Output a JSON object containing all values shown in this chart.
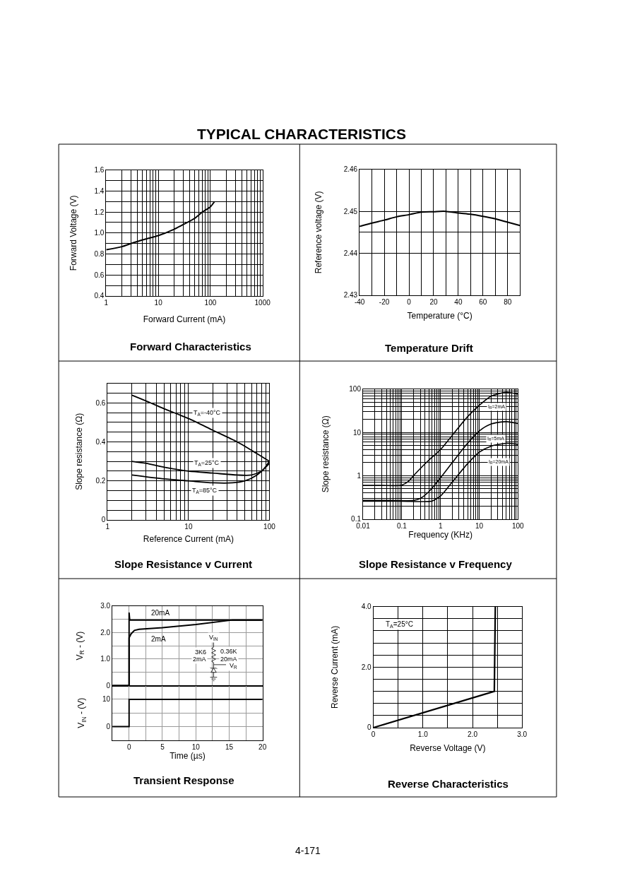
{
  "chart_data": [
    {
      "type": "other",
      "title": "TYPICAL CHARACTERISTICS"
    },
    {
      "type": "line",
      "title": "Forward Characteristics",
      "xlabel": "Forward Current (mA)",
      "ylabel": "Forward Voltage (V)",
      "log": "x",
      "grid": true,
      "xlim": [
        1,
        1000
      ],
      "ylim": [
        0.4,
        1.6
      ],
      "xticks": [
        1,
        {
          "value": 2,
          "label": null
        },
        {
          "value": 3,
          "label": null
        },
        {
          "value": 4,
          "label": null
        },
        {
          "value": 5,
          "label": null
        },
        {
          "value": 6,
          "label": null
        },
        {
          "value": 7,
          "label": null
        },
        {
          "value": 8,
          "label": null
        },
        {
          "value": 9,
          "label": null
        },
        10,
        {
          "value": 20,
          "label": null
        },
        {
          "value": 30,
          "label": null
        },
        {
          "value": 40,
          "label": null
        },
        {
          "value": 50,
          "label": null
        },
        {
          "value": 60,
          "label": null
        },
        {
          "value": 70,
          "label": null
        },
        {
          "value": 80,
          "label": null
        },
        {
          "value": 90,
          "label": null
        },
        100,
        {
          "value": 200,
          "label": null
        },
        {
          "value": 300,
          "label": null
        },
        {
          "value": 400,
          "label": null
        },
        {
          "value": 500,
          "label": null
        },
        {
          "value": 600,
          "label": null
        },
        {
          "value": 700,
          "label": null
        },
        {
          "value": 800,
          "label": null
        },
        {
          "value": 900,
          "label": null
        },
        1000
      ],
      "yticks": [
        0.4,
        {
          "value": 0.5,
          "label": null
        },
        0.6,
        {
          "value": 0.7,
          "label": null
        },
        0.8,
        {
          "value": 0.9,
          "label": null
        },
        {
          "value": 1.0,
          "label": "1.0"
        },
        {
          "value": 1.1,
          "label": null
        },
        1.2,
        {
          "value": 1.3,
          "label": null
        },
        1.4,
        {
          "value": 1.5,
          "label": null
        },
        1.6
      ],
      "series": [
        {
          "color": "#000000",
          "x": [
            1,
            2,
            3,
            5,
            10,
            20,
            30,
            50,
            70,
            100,
            120
          ],
          "values": [
            0.84,
            0.87,
            0.9,
            0.935,
            0.975,
            1.035,
            1.08,
            1.14,
            1.2,
            1.25,
            1.3
          ]
        }
      ]
    },
    {
      "type": "line",
      "title": "Temperature Drift",
      "xlabel": "Temperature (°C)",
      "ylabel": "Reference voltage (V)",
      "grid": true,
      "xlim": [
        -40,
        90
      ],
      "ylim": [
        2.43,
        2.46
      ],
      "xticks": [
        -40,
        {
          "value": -30,
          "label": null
        },
        -20,
        {
          "value": -10,
          "label": null
        },
        0,
        {
          "value": 10,
          "label": null
        },
        20,
        {
          "value": 30,
          "label": null
        },
        40,
        {
          "value": 50,
          "label": null
        },
        60,
        {
          "value": 70,
          "label": null
        },
        80,
        {
          "value": 90,
          "label": null
        }
      ],
      "yticks": [
        2.43,
        2.44,
        {
          "value": 2.445,
          "label": null
        },
        2.45,
        2.46
      ],
      "series": [
        {
          "color": "#000000",
          "x": [
            -40,
            -30,
            -20,
            -10,
            0,
            10,
            20,
            25,
            30,
            40,
            50,
            60,
            70,
            80,
            90
          ],
          "values": [
            2.4464,
            2.4472,
            2.4479,
            2.4487,
            2.4492,
            2.4498,
            2.4499,
            2.45,
            2.45,
            2.4496,
            2.4493,
            2.4488,
            2.4482,
            2.4474,
            2.4466
          ]
        }
      ]
    },
    {
      "type": "line",
      "title": "Slope Resistance v Current",
      "xlabel": "Reference Current (mA)",
      "ylabel": "Slope resistance (Ω)",
      "log": "x",
      "grid": true,
      "xlim": [
        1,
        100
      ],
      "ylim": [
        0,
        0.7
      ],
      "xticks": [
        1,
        {
          "value": 2,
          "label": null
        },
        {
          "value": 3,
          "label": null
        },
        {
          "value": 4,
          "label": null
        },
        {
          "value": 5,
          "label": null
        },
        {
          "value": 6,
          "label": null
        },
        {
          "value": 7,
          "label": null
        },
        {
          "value": 8,
          "label": null
        },
        {
          "value": 9,
          "label": null
        },
        10,
        {
          "value": 20,
          "label": null
        },
        {
          "value": 30,
          "label": null
        },
        {
          "value": 40,
          "label": null
        },
        {
          "value": 50,
          "label": null
        },
        {
          "value": 60,
          "label": null
        },
        {
          "value": 70,
          "label": null
        },
        {
          "value": 80,
          "label": null
        },
        {
          "value": 90,
          "label": null
        },
        100
      ],
      "yticks": [
        0,
        {
          "value": 0.05,
          "label": null
        },
        {
          "value": 0.1,
          "label": null
        },
        {
          "value": 0.15,
          "label": null
        },
        0.2,
        {
          "value": 0.25,
          "label": null
        },
        {
          "value": 0.3,
          "label": null
        },
        {
          "value": 0.35,
          "label": null
        },
        0.4,
        {
          "value": 0.45,
          "label": null
        },
        {
          "value": 0.5,
          "label": null
        },
        {
          "value": 0.55,
          "label": null
        },
        0.6,
        {
          "value": 0.65,
          "label": null
        },
        {
          "value": 0.7,
          "label": null
        }
      ],
      "series": [
        {
          "color": "#000000",
          "x": [
            2,
            3,
            5,
            10,
            20,
            40,
            70,
            100
          ],
          "values": [
            0.64,
            0.61,
            0.57,
            0.52,
            0.46,
            0.4,
            0.34,
            0.3
          ]
        },
        {
          "color": "#000000",
          "x": [
            2,
            3,
            5,
            10,
            20,
            40,
            60,
            80,
            90,
            100
          ],
          "values": [
            0.3,
            0.29,
            0.27,
            0.25,
            0.24,
            0.23,
            0.23,
            0.25,
            0.27,
            0.29
          ]
        },
        {
          "color": "#000000",
          "x": [
            2,
            5,
            10,
            20,
            35,
            50,
            70,
            85,
            100
          ],
          "values": [
            0.23,
            0.21,
            0.2,
            0.19,
            0.19,
            0.2,
            0.23,
            0.26,
            0.3
          ]
        }
      ],
      "annotations": [
        {
          "text": "T$_{A}$=-40°C",
          "x": 17,
          "y": 0.55
        },
        {
          "text": "T$_{A}$=25°C",
          "x": 17,
          "y": 0.29
        },
        {
          "text": "T$_{A}$=85°C",
          "x": 16,
          "y": 0.15
        }
      ]
    },
    {
      "type": "line",
      "title": "Slope Resistance v Frequency",
      "xlabel": "Frequency (KHz)",
      "ylabel": "Slope resistance (Ω)",
      "log": "xy",
      "grid": true,
      "xlim": [
        0.01,
        100
      ],
      "ylim": [
        0.1,
        100
      ],
      "xticks": [
        0.01,
        {
          "value": 0.02,
          "label": null
        },
        {
          "value": 0.03,
          "label": null
        },
        {
          "value": 0.04,
          "label": null
        },
        {
          "value": 0.05,
          "label": null
        },
        {
          "value": 0.06,
          "label": null
        },
        {
          "value": 0.07,
          "label": null
        },
        {
          "value": 0.08,
          "label": null
        },
        {
          "value": 0.09,
          "label": null
        },
        0.1,
        {
          "value": 0.2,
          "label": null
        },
        {
          "value": 0.3,
          "label": null
        },
        {
          "value": 0.4,
          "label": null
        },
        {
          "value": 0.5,
          "label": null
        },
        {
          "value": 0.6,
          "label": null
        },
        {
          "value": 0.7,
          "label": null
        },
        {
          "value": 0.8,
          "label": null
        },
        {
          "value": 0.9,
          "label": null
        },
        1,
        {
          "value": 2,
          "label": null
        },
        {
          "value": 3,
          "label": null
        },
        {
          "value": 4,
          "label": null
        },
        {
          "value": 5,
          "label": null
        },
        {
          "value": 6,
          "label": null
        },
        {
          "value": 7,
          "label": null
        },
        {
          "value": 8,
          "label": null
        },
        {
          "value": 9,
          "label": null
        },
        10,
        {
          "value": 20,
          "label": null
        },
        {
          "value": 30,
          "label": null
        },
        {
          "value": 40,
          "label": null
        },
        {
          "value": 50,
          "label": null
        },
        {
          "value": 60,
          "label": null
        },
        {
          "value": 70,
          "label": null
        },
        {
          "value": 80,
          "label": null
        },
        {
          "value": 90,
          "label": null
        },
        100
      ],
      "yticks": [
        0.1,
        {
          "value": 0.2,
          "label": null
        },
        {
          "value": 0.3,
          "label": null
        },
        {
          "value": 0.4,
          "label": null
        },
        {
          "value": 0.5,
          "label": null
        },
        {
          "value": 0.6,
          "label": null
        },
        {
          "value": 0.7,
          "label": null
        },
        {
          "value": 0.8,
          "label": null
        },
        {
          "value": 0.9,
          "label": null
        },
        1,
        {
          "value": 2,
          "label": null
        },
        {
          "value": 3,
          "label": null
        },
        {
          "value": 4,
          "label": null
        },
        {
          "value": 5,
          "label": null
        },
        {
          "value": 6,
          "label": null
        },
        {
          "value": 7,
          "label": null
        },
        {
          "value": 8,
          "label": null
        },
        {
          "value": 9,
          "label": null
        },
        10,
        {
          "value": 20,
          "label": null
        },
        {
          "value": 30,
          "label": null
        },
        {
          "value": 40,
          "label": null
        },
        {
          "value": 50,
          "label": null
        },
        {
          "value": 60,
          "label": null
        },
        {
          "value": 70,
          "label": null
        },
        {
          "value": 80,
          "label": null
        },
        {
          "value": 90,
          "label": null
        },
        100
      ],
      "series": [
        {
          "color": "#000000",
          "x": [
            0.01,
            0.03,
            0.1,
            0.15,
            0.2,
            0.5,
            1,
            2,
            5,
            10,
            20,
            50,
            100
          ],
          "values": [
            0.6,
            0.6,
            0.61,
            0.75,
            1.0,
            2.3,
            4.0,
            8.5,
            23,
            42,
            68,
            84,
            76
          ]
        },
        {
          "color": "#000000",
          "x": [
            0.01,
            0.05,
            0.2,
            0.3,
            0.5,
            1,
            2,
            5,
            10,
            20,
            50,
            100
          ],
          "values": [
            0.27,
            0.27,
            0.27,
            0.3,
            0.43,
            0.9,
            2.0,
            5.6,
            10.8,
            15.6,
            17.7,
            16
          ]
        },
        {
          "color": "#000000",
          "x": [
            0.01,
            0.1,
            0.6,
            0.8,
            1,
            2,
            5,
            10,
            20,
            50,
            100
          ],
          "values": [
            0.26,
            0.26,
            0.26,
            0.3,
            0.34,
            0.71,
            1.9,
            3.5,
            4.8,
            5.6,
            5.3
          ]
        }
      ],
      "annotations": [
        {
          "text": "I$_{R}$=2mA",
          "x": 28,
          "y": 38
        },
        {
          "text": "I$_{R}$=5mA",
          "x": 27,
          "y": 7.2
        },
        {
          "text": "I$_{R}$=20mA",
          "x": 32,
          "y": 2.1
        }
      ]
    },
    {
      "type": "line",
      "ylabel": "V$_{R}$ - (V)",
      "grid": true,
      "tick_labels": "y",
      "xlim": [
        -2.5,
        20
      ],
      "ylim": [
        0,
        3
      ],
      "xticks": [
        0,
        {
          "value": 2.5,
          "label": null
        },
        5,
        {
          "value": 7.5,
          "label": null
        },
        10,
        {
          "value": 12.5,
          "label": null
        },
        15,
        {
          "value": 17.5,
          "label": null
        },
        20
      ],
      "yticks": [
        0,
        {
          "value": 0.5,
          "label": null
        },
        {
          "value": 1,
          "label": "1.0"
        },
        {
          "value": 1.5,
          "label": null
        },
        {
          "value": 2,
          "label": "2.0"
        },
        {
          "value": 2.5,
          "label": null
        },
        {
          "value": 3,
          "label": "3.0"
        }
      ],
      "series": [
        {
          "name": "20mA",
          "color": "#000000",
          "x": [
            -2.5,
            0,
            0,
            0.1,
            20
          ],
          "values": [
            0,
            0,
            2.75,
            2.47,
            2.47
          ]
        },
        {
          "name": "2mA",
          "color": "#000000",
          "x": [
            -2.5,
            0,
            0,
            0.3,
            0.8,
            1.5,
            5,
            10,
            15.5,
            20
          ],
          "values": [
            0,
            0,
            1.8,
            1.95,
            2.08,
            2.12,
            2.18,
            2.3,
            2.47,
            2.47
          ]
        }
      ],
      "annotations": [
        "V$_{IN}$",
        "3K6",
        "2mA",
        "0.36K",
        "20mA",
        "V$_{R}$"
      ]
    },
    {
      "type": "line",
      "title": "Transient Response",
      "xlabel": "Time (µs)",
      "ylabel": "V$_{IN}$ - (V)",
      "grid": true,
      "xlim": [
        -2.5,
        20
      ],
      "ylim": [
        -5,
        15
      ],
      "xticks": [
        0,
        {
          "value": 2.5,
          "label": null
        },
        5,
        {
          "value": 7.5,
          "label": null
        },
        10,
        {
          "value": 12.5,
          "label": null
        },
        15,
        {
          "value": 17.5,
          "label": null
        },
        20
      ],
      "yticks": [
        {
          "value": -5,
          "label": null
        },
        0,
        {
          "value": 5,
          "label": null
        },
        10,
        {
          "value": 15,
          "label": null
        }
      ],
      "series": [
        {
          "color": "#000000",
          "x": [
            -2.5,
            0,
            0,
            20
          ],
          "values": [
            0,
            0,
            10,
            10
          ]
        }
      ]
    },
    {
      "type": "line",
      "title": "Reverse Characteristics",
      "xlabel": "Reverse Voltage (V)",
      "ylabel": "Reverse Current (mA)",
      "grid": true,
      "xlim": [
        0,
        3
      ],
      "ylim": [
        0,
        4
      ],
      "xticks": [
        0,
        {
          "value": 0.5,
          "label": null
        },
        {
          "value": 1,
          "label": "1.0"
        },
        {
          "value": 1.5,
          "label": null
        },
        {
          "value": 2,
          "label": "2.0"
        },
        {
          "value": 2.5,
          "label": null
        },
        {
          "value": 3,
          "label": "3.0"
        }
      ],
      "yticks": [
        0,
        {
          "value": 0.4,
          "label": null
        },
        {
          "value": 0.8,
          "label": null
        },
        {
          "value": 1.2,
          "label": null
        },
        {
          "value": 1.6,
          "label": null
        },
        {
          "value": 2,
          "label": "2.0"
        },
        {
          "value": 2.4,
          "label": null
        },
        {
          "value": 2.8,
          "label": null
        },
        {
          "value": 3.2,
          "label": null
        },
        {
          "value": 3.6,
          "label": null
        },
        {
          "value": 4,
          "label": "4.0"
        }
      ],
      "series": [
        {
          "color": "#000000",
          "x": [
            0,
            2.44,
            2.46
          ],
          "values": [
            0,
            1.2,
            4.0
          ]
        }
      ],
      "annotations": [
        "T$_{A}$=25°C"
      ]
    },
    {
      "type": "other",
      "annotations": [
        "4-171"
      ]
    }
  ]
}
